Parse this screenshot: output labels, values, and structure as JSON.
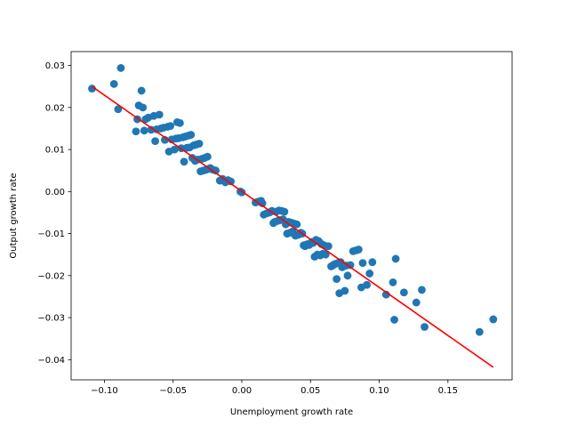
{
  "chart_data": {
    "type": "scatter",
    "title": "",
    "xlabel": "Unemployment growth rate",
    "ylabel": "Output growth rate",
    "xlim": [
      -0.1242,
      0.1967
    ],
    "ylim": [
      -0.0448,
      0.0333
    ],
    "grid": false,
    "x_ticks": [
      -0.1,
      -0.05,
      0.0,
      0.05,
      0.1,
      0.15
    ],
    "x_tick_labels": [
      "−0.10",
      "−0.05",
      "0.00",
      "0.05",
      "0.10",
      "0.15"
    ],
    "y_ticks": [
      0.03,
      0.02,
      0.01,
      0.0,
      -0.01,
      -0.02,
      -0.03,
      -0.04
    ],
    "y_tick_labels": [
      "0.03",
      "0.02",
      "0.01",
      "0.00",
      "−0.01",
      "−0.02",
      "−0.03",
      "−0.04"
    ],
    "scatter_color": "#1f77b4",
    "line_color": "#ff0000",
    "fit_line": {
      "x": [
        -0.109,
        0.183
      ],
      "y": [
        0.025,
        -0.0418
      ]
    },
    "points": [
      [
        -0.109,
        0.0245
      ],
      [
        -0.093,
        0.0256
      ],
      [
        -0.088,
        0.0294
      ],
      [
        -0.09,
        0.0196
      ],
      [
        -0.077,
        0.0143
      ],
      [
        -0.076,
        0.0172
      ],
      [
        -0.075,
        0.0205
      ],
      [
        -0.073,
        0.024
      ],
      [
        -0.072,
        0.02
      ],
      [
        -0.071,
        0.0145
      ],
      [
        -0.07,
        0.0172
      ],
      [
        -0.068,
        0.0176
      ],
      [
        -0.066,
        0.0147
      ],
      [
        -0.064,
        0.018
      ],
      [
        -0.063,
        0.012
      ],
      [
        -0.062,
        0.0148
      ],
      [
        -0.06,
        0.0183
      ],
      [
        -0.059,
        0.015
      ],
      [
        -0.057,
        0.0152
      ],
      [
        -0.056,
        0.0123
      ],
      [
        -0.054,
        0.0154
      ],
      [
        -0.053,
        0.0095
      ],
      [
        -0.052,
        0.0156
      ],
      [
        -0.051,
        0.0124
      ],
      [
        -0.049,
        0.01
      ],
      [
        -0.048,
        0.0126
      ],
      [
        -0.047,
        0.0165
      ],
      [
        -0.046,
        0.0127
      ],
      [
        -0.045,
        0.0163
      ],
      [
        -0.044,
        0.0103
      ],
      [
        -0.043,
        0.0129
      ],
      [
        -0.042,
        0.0071
      ],
      [
        -0.041,
        0.0131
      ],
      [
        -0.04,
        0.0104
      ],
      [
        -0.039,
        0.0133
      ],
      [
        -0.038,
        0.0105
      ],
      [
        -0.037,
        0.0135
      ],
      [
        -0.036,
        0.008
      ],
      [
        -0.035,
        0.011
      ],
      [
        -0.034,
        0.0073
      ],
      [
        -0.033,
        0.0112
      ],
      [
        -0.032,
        0.0076
      ],
      [
        -0.031,
        0.0114
      ],
      [
        -0.03,
        0.0048
      ],
      [
        -0.029,
        0.0078
      ],
      [
        -0.028,
        0.005
      ],
      [
        -0.027,
        0.008
      ],
      [
        -0.026,
        0.0052
      ],
      [
        -0.025,
        0.0083
      ],
      [
        -0.024,
        0.0054
      ],
      [
        -0.023,
        0.0056
      ],
      [
        -0.021,
        0.0052
      ],
      [
        -0.019,
        0.005
      ],
      [
        -0.016,
        0.0026
      ],
      [
        -0.014,
        0.003
      ],
      [
        -0.012,
        0.0022
      ],
      [
        -0.01,
        0.0027
      ],
      [
        -0.008,
        0.0024
      ],
      [
        -0.001,
        0.0
      ],
      [
        0.0,
        -0.0002
      ],
      [
        0.01,
        -0.0026
      ],
      [
        0.012,
        -0.0024
      ],
      [
        0.014,
        -0.0022
      ],
      [
        0.015,
        -0.0028
      ],
      [
        0.016,
        -0.0055
      ],
      [
        0.018,
        -0.0052
      ],
      [
        0.02,
        -0.005
      ],
      [
        0.021,
        -0.0048
      ],
      [
        0.022,
        -0.0046
      ],
      [
        0.023,
        -0.0075
      ],
      [
        0.024,
        -0.0072
      ],
      [
        0.025,
        -0.0048
      ],
      [
        0.026,
        -0.007
      ],
      [
        0.027,
        -0.0045
      ],
      [
        0.028,
        -0.0068
      ],
      [
        0.029,
        -0.0046
      ],
      [
        0.03,
        -0.0066
      ],
      [
        0.031,
        -0.0048
      ],
      [
        0.032,
        -0.0078
      ],
      [
        0.033,
        -0.01
      ],
      [
        0.034,
        -0.0072
      ],
      [
        0.035,
        -0.0098
      ],
      [
        0.036,
        -0.0074
      ],
      [
        0.037,
        -0.0095
      ],
      [
        0.038,
        -0.0076
      ],
      [
        0.039,
        -0.0105
      ],
      [
        0.04,
        -0.0078
      ],
      [
        0.041,
        -0.0103
      ],
      [
        0.042,
        -0.0101
      ],
      [
        0.043,
        -0.0098
      ],
      [
        0.044,
        -0.01
      ],
      [
        0.045,
        -0.0128
      ],
      [
        0.046,
        -0.013
      ],
      [
        0.047,
        -0.0126
      ],
      [
        0.048,
        -0.0125
      ],
      [
        0.049,
        -0.0127
      ],
      [
        0.05,
        -0.0124
      ],
      [
        0.051,
        -0.012
      ],
      [
        0.052,
        -0.0122
      ],
      [
        0.053,
        -0.0155
      ],
      [
        0.054,
        -0.0115
      ],
      [
        0.055,
        -0.015
      ],
      [
        0.056,
        -0.0118
      ],
      [
        0.057,
        -0.0152
      ],
      [
        0.058,
        -0.0125
      ],
      [
        0.059,
        -0.0148
      ],
      [
        0.06,
        -0.0128
      ],
      [
        0.061,
        -0.015
      ],
      [
        0.063,
        -0.013
      ],
      [
        0.065,
        -0.0178
      ],
      [
        0.066,
        -0.0176
      ],
      [
        0.067,
        -0.0174
      ],
      [
        0.068,
        -0.0172
      ],
      [
        0.069,
        -0.0208
      ],
      [
        0.07,
        -0.017
      ],
      [
        0.071,
        -0.0242
      ],
      [
        0.072,
        -0.0168
      ],
      [
        0.073,
        -0.018
      ],
      [
        0.074,
        -0.0178
      ],
      [
        0.075,
        -0.0236
      ],
      [
        0.076,
        -0.0176
      ],
      [
        0.077,
        -0.02
      ],
      [
        0.079,
        -0.0175
      ],
      [
        0.081,
        -0.0142
      ],
      [
        0.083,
        -0.014
      ],
      [
        0.085,
        -0.0138
      ],
      [
        0.087,
        -0.0228
      ],
      [
        0.088,
        -0.017
      ],
      [
        0.091,
        -0.0222
      ],
      [
        0.093,
        -0.0195
      ],
      [
        0.095,
        -0.0168
      ],
      [
        0.105,
        -0.0245
      ],
      [
        0.11,
        -0.0216
      ],
      [
        0.111,
        -0.0305
      ],
      [
        0.112,
        -0.016
      ],
      [
        0.118,
        -0.024
      ],
      [
        0.127,
        -0.0264
      ],
      [
        0.131,
        -0.0234
      ],
      [
        0.133,
        -0.0322
      ],
      [
        0.173,
        -0.0334
      ],
      [
        0.183,
        -0.0304
      ]
    ]
  }
}
